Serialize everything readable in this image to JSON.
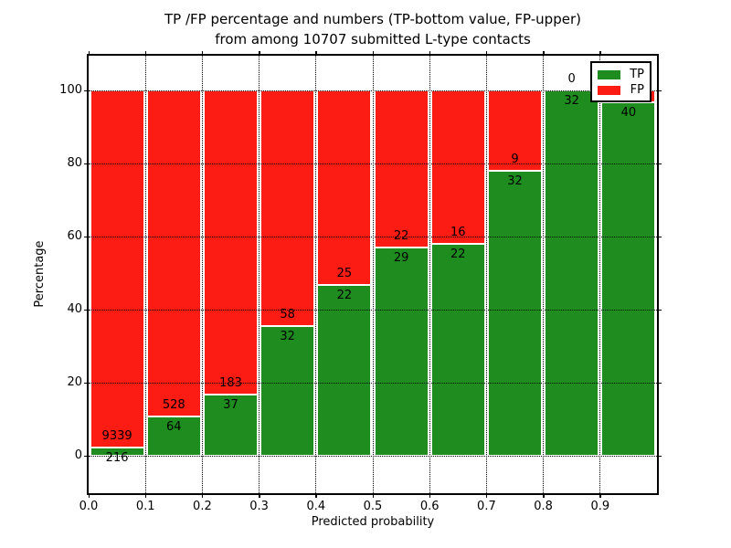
{
  "figure": {
    "title_line1": "TP /FP percentage and numbers (TP-bottom value, FP-upper)",
    "title_line2": "from among 10707 submitted L-type contacts"
  },
  "axes": {
    "x_label": "Predicted probability",
    "y_label": "Percentage",
    "x_tick_labels": [
      "0.0",
      "0.1",
      "0.2",
      "0.3",
      "0.4",
      "0.5",
      "0.6",
      "0.7",
      "0.8",
      "0.9"
    ],
    "y_tick_labels": [
      "0",
      "20",
      "40",
      "60",
      "80",
      "100"
    ],
    "y_tick_values": [
      0,
      20,
      40,
      60,
      80,
      100
    ]
  },
  "legend": {
    "items": [
      {
        "label": "TP",
        "color": "#1e8c1e"
      },
      {
        "label": "FP",
        "color": "#fc1c13"
      }
    ]
  },
  "chart_data": {
    "type": "bar",
    "stacked": true,
    "title": "TP /FP percentage and numbers (TP-bottom value, FP-upper) from among 10707 submitted L-type contacts",
    "xlabel": "Predicted probability",
    "ylabel": "Percentage",
    "xlim": [
      0.0,
      1.0
    ],
    "ylim": [
      -10,
      110
    ],
    "grid": "dotted",
    "legend_position": "upper right",
    "bin_width": 0.1,
    "categories": [
      "0.0-0.1",
      "0.1-0.2",
      "0.2-0.3",
      "0.3-0.4",
      "0.4-0.5",
      "0.5-0.6",
      "0.6-0.7",
      "0.7-0.8",
      "0.8-0.9",
      "0.9-1.0"
    ],
    "series": [
      {
        "name": "TP",
        "color": "#1e8c1e",
        "counts": [
          216,
          64,
          37,
          32,
          22,
          29,
          22,
          32,
          32,
          40
        ],
        "percent": [
          2.3,
          10.8,
          16.8,
          35.6,
          46.8,
          56.9,
          57.9,
          78.0,
          100.0,
          96.8
        ],
        "labels": [
          "216",
          "64",
          "37",
          "32",
          "22",
          "29",
          "22",
          "32",
          "32",
          "40"
        ]
      },
      {
        "name": "FP",
        "color": "#fc1c13",
        "counts": [
          9339,
          528,
          183,
          58,
          25,
          22,
          16,
          9,
          0,
          null
        ],
        "percent": [
          97.7,
          89.2,
          83.2,
          64.4,
          53.2,
          43.1,
          42.1,
          22.0,
          0.0,
          3.2
        ],
        "labels": [
          "9339",
          "528",
          "183",
          "58",
          "25",
          "22",
          "16",
          "9",
          "0",
          ""
        ]
      }
    ]
  }
}
